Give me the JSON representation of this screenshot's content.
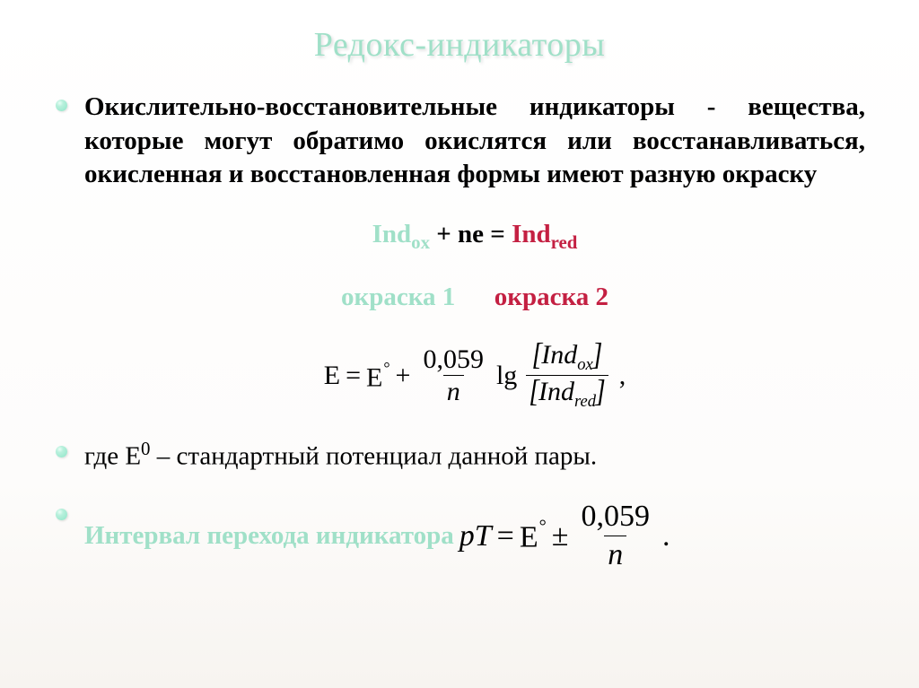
{
  "colors": {
    "title_color": "#a0e0c8",
    "bullet_glow": "#8fe5c8",
    "teal": "#a0e0c8",
    "crimson": "#c42042",
    "text": "#000000",
    "background": "#ffffff"
  },
  "typography": {
    "title_font": "Times New Roman",
    "title_size_pt": 28,
    "body_font": "Times New Roman",
    "body_size_pt": 22,
    "eq_font": "Times New Roman"
  },
  "title": "Редокс-индикаторы",
  "bullet1_text": "Окислительно-восстановительные индикаторы - вещества, которые могут обратимо окислятся или восстанавливаться, окисленная и восстановленная формы имеют разную окраску",
  "reaction": {
    "lhs_teal": "Ind",
    "lhs_sub": "ox",
    "middle": " + ne = ",
    "rhs_crimson": "Ind",
    "rhs_sub": "red"
  },
  "colors_labels": {
    "left": "окраска 1",
    "right": "окраска 2"
  },
  "nernst_eq": {
    "lhs": "E",
    "equals": "=",
    "E0": "E",
    "plus": "+",
    "coef_num": "0,059",
    "coef_den": "n",
    "lg": "lg",
    "top_brac_inner": "Ind",
    "top_brac_sub": "ox",
    "bot_brac_inner": "Ind",
    "bot_brac_sub": "red",
    "trailing": ","
  },
  "bullet2_prefix": "где Е",
  "bullet2_sup": "0",
  "bullet2_rest": " – стандартный потенциал данной пары.",
  "bullet3_label": "Интервал перехода индикатора",
  "interval_eq": {
    "pT": "pT",
    "equals": "=",
    "E0": "E",
    "pm": "±",
    "num": "0,059",
    "den": "n",
    "dot": "."
  }
}
